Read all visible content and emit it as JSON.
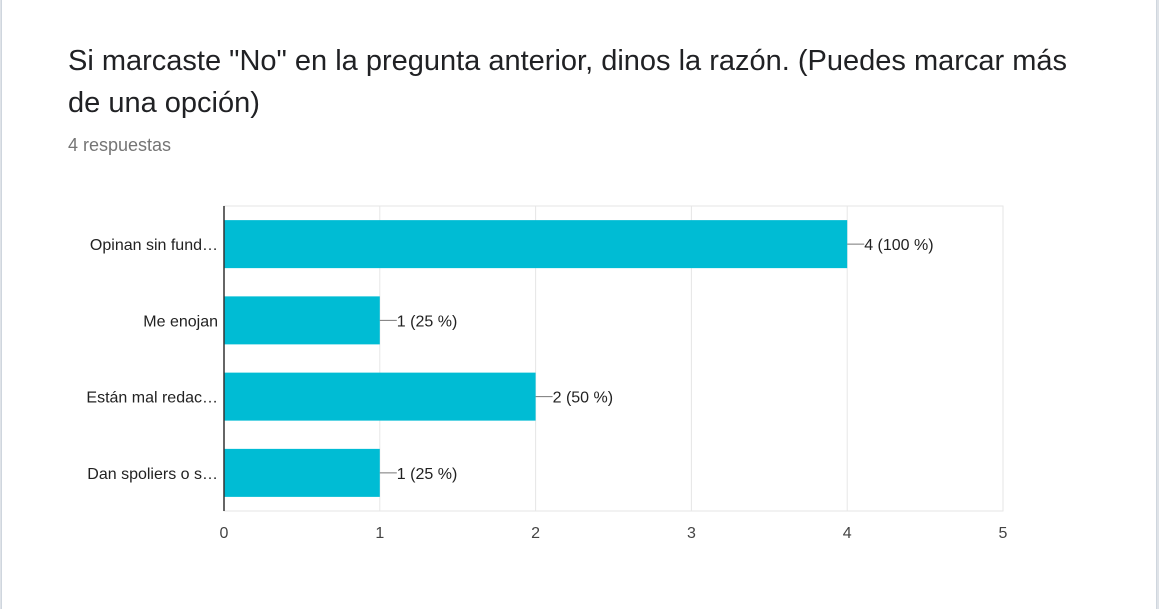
{
  "form": {
    "question": "Si marcaste \"No\" en la pregunta anterior, dinos la razón. (Puedes marcar más de una opción)",
    "responses": "4 respuestas"
  },
  "chart_data": {
    "type": "bar",
    "orientation": "horizontal",
    "categories": [
      "Opinan sin fund…",
      "Me enojan",
      "Están mal redac…",
      "Dan spoliers o s…"
    ],
    "values": [
      4,
      1,
      2,
      1
    ],
    "data_labels": [
      "4 (100 %)",
      "1 (25 %)",
      "2 (50 %)",
      "1 (25 %)"
    ],
    "xlim": [
      0,
      5
    ],
    "x_ticks": [
      "0",
      "1",
      "2",
      "3",
      "4",
      "5"
    ],
    "grid": true,
    "bar_color": "#00bcd4"
  }
}
